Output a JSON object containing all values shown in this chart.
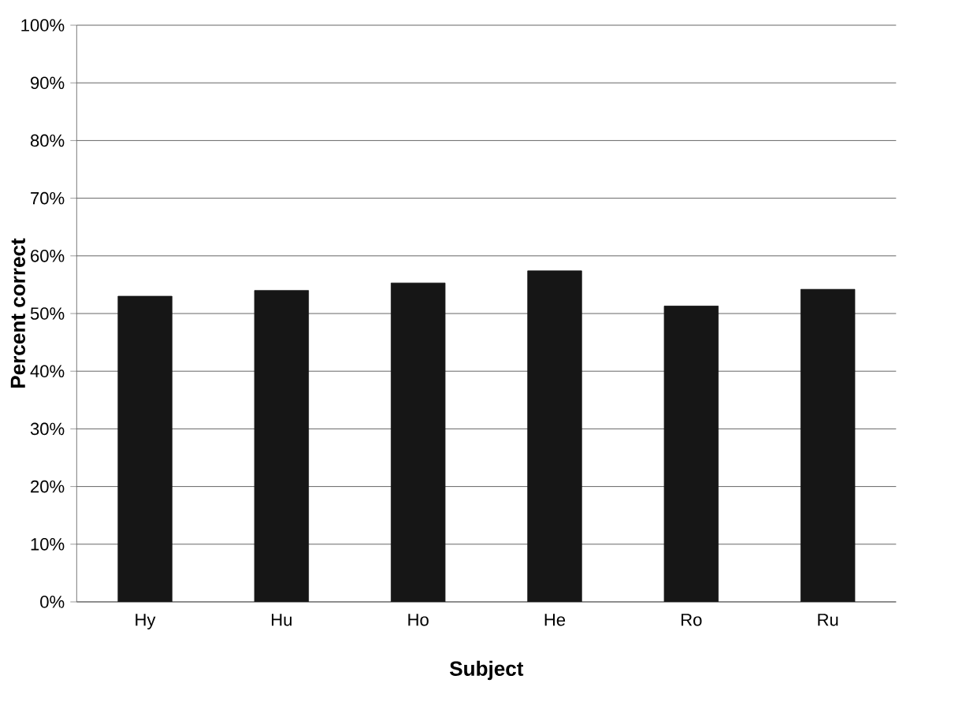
{
  "chart_data": {
    "type": "bar",
    "xlabel": "Subject",
    "ylabel": "Percent correct",
    "categories": [
      "Hy",
      "Hu",
      "Ho",
      "He",
      "Ro",
      "Ru"
    ],
    "values": [
      53,
      54,
      55.3,
      57.4,
      51.3,
      54.2
    ],
    "color": "#161616",
    "ylim": [
      0,
      100
    ],
    "yticks": [
      {
        "value": 0,
        "label": "0%"
      },
      {
        "value": 10,
        "label": "10%"
      },
      {
        "value": 20,
        "label": "20%"
      },
      {
        "value": 30,
        "label": "30%"
      },
      {
        "value": 40,
        "label": "40%"
      },
      {
        "value": 50,
        "label": "50%"
      },
      {
        "value": 60,
        "label": "60%"
      },
      {
        "value": 70,
        "label": "70%"
      },
      {
        "value": 80,
        "label": "80%"
      },
      {
        "value": 90,
        "label": "90%"
      },
      {
        "value": 100,
        "label": "100%"
      }
    ],
    "grid": "y"
  }
}
